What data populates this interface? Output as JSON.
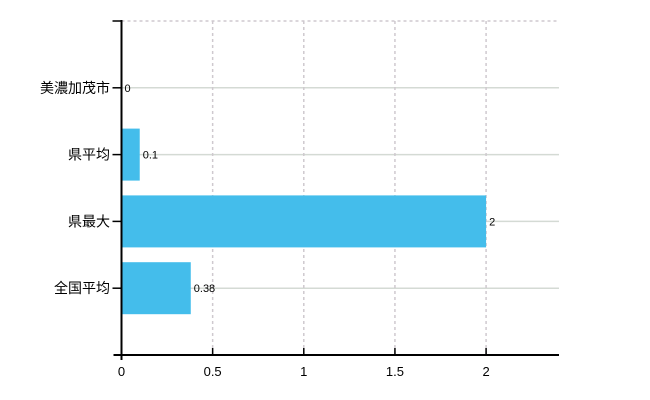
{
  "chart_data": {
    "type": "bar",
    "orientation": "horizontal",
    "title": "",
    "xlabel": "",
    "ylabel": "",
    "categories": [
      "美濃加茂市",
      "県平均",
      "県最大",
      "全国平均"
    ],
    "values": [
      0,
      0.1,
      2,
      0.38
    ],
    "value_labels": [
      "0",
      "0.1",
      "2",
      "0.38"
    ],
    "x_ticks": [
      0,
      0.5,
      1,
      1.5,
      2
    ],
    "x_tick_labels": [
      "0",
      "0.5",
      "1",
      "1.5",
      "2"
    ],
    "xlim": [
      0,
      2.4
    ],
    "grid": {
      "horizontal": "solid",
      "vertical": "dashed",
      "top_border": "dashed"
    },
    "legend": "none",
    "colors": {
      "bar": "#44bdeb",
      "axis": "#000000",
      "text": "#000000",
      "grid_solid": "#d4dad4",
      "grid_dashed": "#cfc9cf"
    }
  }
}
